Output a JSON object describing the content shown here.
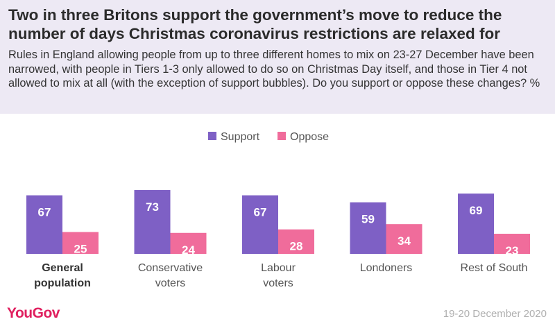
{
  "header": {
    "title": "Two in three Britons support the government’s move to reduce the number of days Christmas coronavirus restrictions are relaxed for",
    "subtitle": "Rules in England allowing people from up to three different homes to mix on 23-27 December have been narrowed, with people in Tiers 1-3 only allowed to do so on Christmas Day itself, and those in Tier 4 not allowed to mix at all (with the exception of support bubbles). Do you support or oppose these changes? %"
  },
  "footer": {
    "brand": "YouGov",
    "date": "19-20 December 2020"
  },
  "colors": {
    "support": "#7e60c5",
    "oppose": "#f06c9b",
    "header_bg": "#ede9f4"
  },
  "chart_data": {
    "type": "bar",
    "categories": [
      [
        "General",
        "population"
      ],
      [
        "Conservative",
        "voters"
      ],
      [
        "Labour",
        "voters"
      ],
      [
        "Londoners"
      ],
      [
        "Rest of South"
      ]
    ],
    "bold_categories": [
      0
    ],
    "series": [
      {
        "name": "Support",
        "values": [
          67,
          73,
          67,
          59,
          69
        ]
      },
      {
        "name": "Oppose",
        "values": [
          25,
          24,
          28,
          34,
          23
        ]
      }
    ],
    "ylim": [
      0,
      100
    ],
    "legend_position": "top-center",
    "grid": false
  }
}
